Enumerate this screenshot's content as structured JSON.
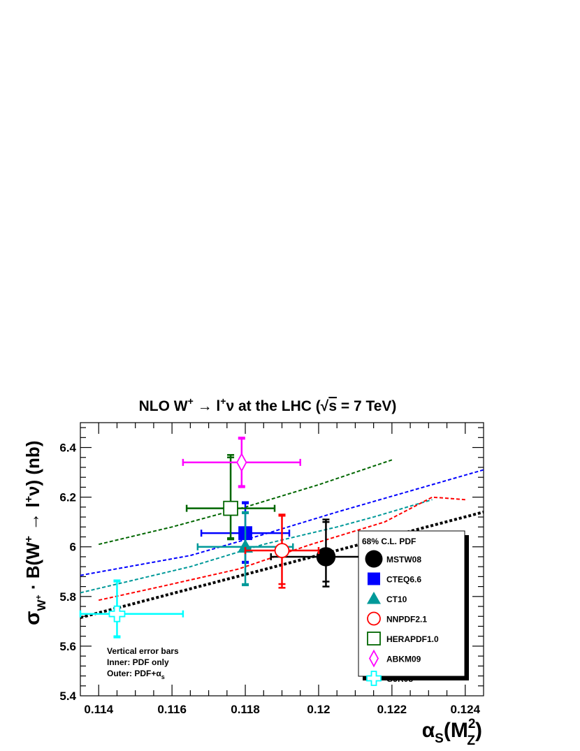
{
  "chart_data": {
    "type": "scatter",
    "title": {
      "p1": "NLO W",
      "p1_sup": "+",
      "p2": " → l",
      "p2_sup": "+",
      "p3": "ν at the LHC (",
      "sqrt": "√",
      "s": "s",
      "p4": " = 7 TeV)"
    },
    "xlabel": {
      "alpha": "α",
      "sub_s": "S",
      "open": "(M",
      "sup": "2",
      "sub": "Z",
      "close": ")"
    },
    "ylabel": {
      "sigma": "σ",
      "sub_w": "W",
      "sub_w_sup": "+",
      "b": " · B(W",
      "b_sup": "+",
      "arrow": " → l",
      "arrow_sup": "+",
      "nu": "ν)  (nb)"
    },
    "xlim": [
      0.1135,
      0.1245
    ],
    "ylim": [
      5.4,
      6.5
    ],
    "x_ticks": [
      0.114,
      0.116,
      0.118,
      0.12,
      0.122,
      0.124
    ],
    "x_tick_labels": [
      "0.114",
      "0.116",
      "0.118",
      "0.12",
      "0.122",
      "0.124"
    ],
    "y_ticks": [
      5.4,
      5.6,
      5.8,
      6.0,
      6.2,
      6.4
    ],
    "y_tick_labels": [
      "5.4",
      "5.6",
      "5.8",
      "6",
      "6.2",
      "6.4"
    ],
    "grid": false,
    "legend": {
      "header": "68% C.L. PDF",
      "placement": "right",
      "entries": [
        "MSTW08",
        "CTEQ6.6",
        "CT10",
        "NNPDF2.1",
        "HERAPDF1.0",
        "ABKM09",
        "GJR08"
      ]
    },
    "annotation": {
      "line1": "Vertical error bars",
      "line2": "Inner: PDF only",
      "line3": "Outer: PDF+",
      "alpha": "α",
      "sub": "s"
    },
    "series": [
      {
        "name": "MSTW08",
        "color": "#000000",
        "marker": "filled-circle",
        "x": 0.1202,
        "y": 5.96,
        "x_err": [
          0.1187,
          0.1217
        ],
        "y_inner": [
          5.86,
          6.1
        ],
        "y_outer": [
          5.84,
          6.11
        ],
        "line": [
          [
            0.1135,
            5.715
          ],
          [
            0.1245,
            6.14
          ]
        ]
      },
      {
        "name": "CTEQ6.6",
        "color": "#0000ff",
        "marker": "filled-square",
        "x": 0.118,
        "y": 6.055,
        "x_err": [
          0.1168,
          0.1192
        ],
        "y_inner": [
          5.94,
          6.175
        ],
        "y_outer": [
          5.935,
          6.18
        ],
        "line": [
          [
            0.1135,
            5.885
          ],
          [
            0.1165,
            5.965
          ],
          [
            0.1185,
            6.05
          ],
          [
            0.1205,
            6.14
          ],
          [
            0.1225,
            6.225
          ],
          [
            0.1245,
            6.31
          ]
        ]
      },
      {
        "name": "CT10",
        "color": "#009999",
        "marker": "filled-triangle",
        "x": 0.118,
        "y": 6.0,
        "x_err": [
          0.1167,
          0.1193
        ],
        "y_inner": [
          5.85,
          6.135
        ],
        "y_outer": [
          5.845,
          6.14
        ],
        "line": [
          [
            0.1135,
            5.815
          ],
          [
            0.1165,
            5.92
          ],
          [
            0.1185,
            6.01
          ],
          [
            0.1205,
            6.08
          ],
          [
            0.1215,
            6.12
          ],
          [
            0.1231,
            6.19
          ]
        ]
      },
      {
        "name": "NNPDF2.1",
        "color": "#ff0000",
        "marker": "open-circle",
        "x": 0.119,
        "y": 5.985,
        "x_err": [
          0.118,
          0.12
        ],
        "y_inner": [
          5.85,
          6.125
        ],
        "y_outer": [
          5.835,
          6.13
        ],
        "line": [
          [
            0.114,
            5.785
          ],
          [
            0.1157,
            5.84
          ],
          [
            0.1178,
            5.91
          ],
          [
            0.1198,
            6.01
          ],
          [
            0.1218,
            6.1
          ],
          [
            0.1231,
            6.2
          ],
          [
            0.124,
            6.19
          ]
        ]
      },
      {
        "name": "HERAPDF1.0",
        "color": "#006600",
        "marker": "open-square",
        "x": 0.1176,
        "y": 6.155,
        "x_err": [
          0.1164,
          0.1188
        ],
        "y_inner": [
          6.035,
          6.36
        ],
        "y_outer": [
          6.03,
          6.37
        ],
        "line": [
          [
            0.114,
            6.01
          ],
          [
            0.116,
            6.08
          ],
          [
            0.118,
            6.16
          ],
          [
            0.12,
            6.25
          ],
          [
            0.122,
            6.35
          ]
        ]
      },
      {
        "name": "ABKM09",
        "color": "#ff00ff",
        "marker": "open-diamond",
        "x": 0.1179,
        "y": 6.34,
        "x_err": [
          0.1163,
          0.1195
        ],
        "y_inner": [
          6.245,
          6.435
        ],
        "y_outer": [
          6.24,
          6.44
        ],
        "line": []
      },
      {
        "name": "GJR08",
        "color": "#00ffff",
        "marker": "open-cross",
        "x": 0.1145,
        "y": 5.73,
        "x_err": [
          0.1135,
          0.1163
        ],
        "y_inner": [
          5.64,
          5.86
        ],
        "y_outer": [
          5.635,
          5.865
        ],
        "line": []
      }
    ]
  }
}
